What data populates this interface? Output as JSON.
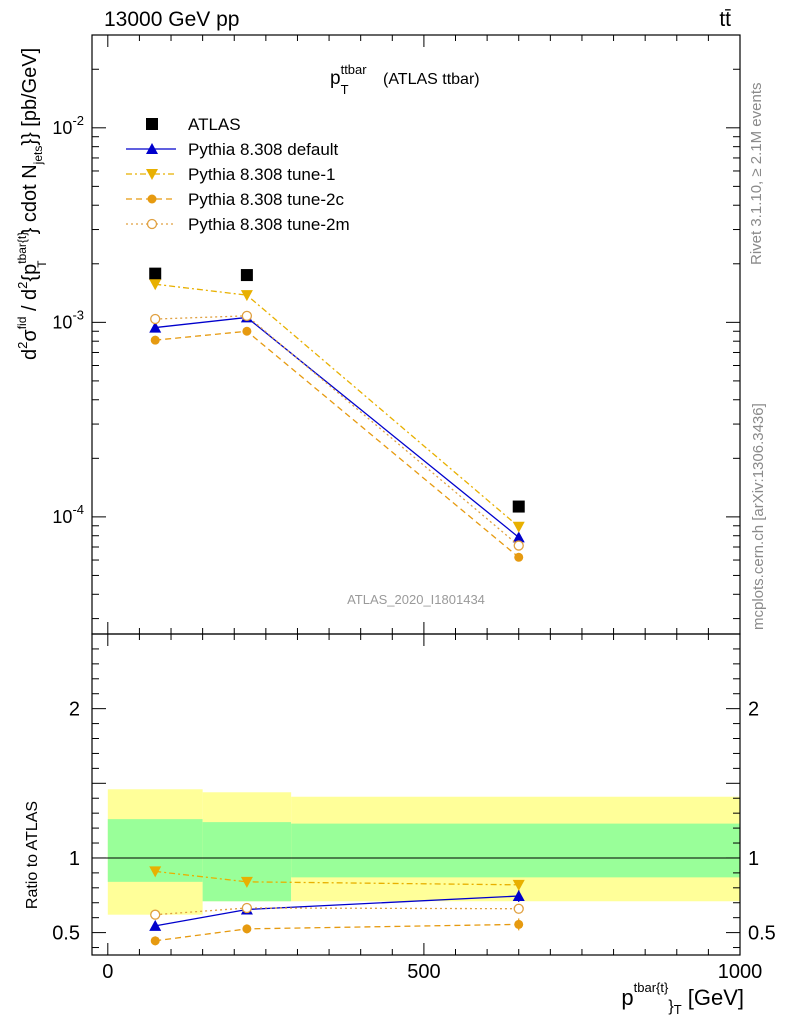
{
  "header": {
    "energy": "13000 GeV pp",
    "process": "tt̄"
  },
  "side_labels": {
    "rivet": "Rivet 3.1.10, ≥ 2.1M events",
    "mcplots": "mcplots.cern.ch [arXiv:1306.3436]"
  },
  "chart_data": [
    {
      "type": "scatter",
      "title_main": "p",
      "title_sup": "ttbar",
      "title_sub": "T",
      "title_rest": " (ATLAS ttbar)",
      "watermark": "ATLAS_2020_I1801434",
      "ylabel": "d²σ^fid / d²{p_T^tbar{t}} cdot N_jets}} [pb/GeV]",
      "yscale": "log",
      "ylim": [
        2.5e-05,
        0.03
      ],
      "y_tick_labels": [
        "10^-4",
        "10^-3",
        "10^-2"
      ],
      "x": [
        75,
        220,
        650
      ],
      "series": [
        {
          "name": "ATLAS",
          "color": "#000000",
          "marker": "square",
          "line": "none",
          "values": [
            0.00178,
            0.00175,
            0.000113
          ]
        },
        {
          "name": "Pythia 8.308 default",
          "color": "#0000cc",
          "marker": "triangle-up",
          "line": "solid",
          "values": [
            0.00094,
            0.00106,
            7.85e-05
          ]
        },
        {
          "name": "Pythia 8.308 tune-1",
          "color": "#e8b000",
          "marker": "triangle-down",
          "line": "dashdot",
          "values": [
            0.00157,
            0.00138,
            8.9e-05
          ]
        },
        {
          "name": "Pythia 8.308 tune-2c",
          "color": "#e69a10",
          "marker": "circle",
          "line": "dashed",
          "values": [
            0.00081,
            0.0009,
            6.2e-05
          ]
        },
        {
          "name": "Pythia 8.308 tune-2m",
          "color": "#e0a040",
          "marker": "circle-open",
          "line": "dotted",
          "values": [
            0.00104,
            0.00108,
            7.12e-05
          ]
        }
      ],
      "legend_position": "top-left"
    },
    {
      "type": "scatter",
      "ylabel": "Ratio to ATLAS",
      "xlabel_main": "p",
      "xlabel_sup": "tbar{t}",
      "xlabel_sub": "}",
      "xlabel_subT": "T",
      "xlabel_unit": " [GeV]",
      "xlim": [
        -25,
        1000
      ],
      "ylim": [
        0.35,
        2.5
      ],
      "x_tick_labels": [
        "0",
        "500",
        "1000"
      ],
      "y_tick_labels": [
        "0.5",
        "1",
        "2"
      ],
      "bands": [
        {
          "x_range": [
            0,
            150
          ],
          "total": [
            0.62,
            1.46
          ],
          "stat": [
            0.84,
            1.26
          ]
        },
        {
          "x_range": [
            150,
            290
          ],
          "total": [
            0.71,
            1.44
          ],
          "stat": [
            0.71,
            1.24
          ]
        },
        {
          "x_range": [
            290,
            1000
          ],
          "total": [
            0.71,
            1.41
          ],
          "stat": [
            0.87,
            1.23
          ]
        }
      ],
      "band_colors": {
        "total": "#ffff99",
        "stat": "#99ff99"
      },
      "x": [
        75,
        220,
        650
      ],
      "series": [
        {
          "name": "Pythia 8.308 default",
          "color": "#0000cc",
          "marker": "triangle-up",
          "line": "solid",
          "values": [
            0.545,
            0.655,
            0.745
          ],
          "err": [
            0.03,
            0.03,
            0.04
          ]
        },
        {
          "name": "Pythia 8.308 tune-1",
          "color": "#e8b000",
          "marker": "triangle-down",
          "line": "dashdot",
          "values": [
            0.91,
            0.84,
            0.82
          ],
          "err": [
            0.02,
            0.02,
            0.03
          ]
        },
        {
          "name": "Pythia 8.308 tune-2c",
          "color": "#e69a10",
          "marker": "circle",
          "line": "dashed",
          "values": [
            0.445,
            0.525,
            0.555
          ],
          "err": [
            0.03,
            0.03,
            0.04
          ]
        },
        {
          "name": "Pythia 8.308 tune-2m",
          "color": "#e0a040",
          "marker": "circle-open",
          "line": "dotted",
          "values": [
            0.62,
            0.665,
            0.66
          ],
          "err": [
            0.02,
            0.02,
            0.02
          ]
        }
      ]
    }
  ]
}
